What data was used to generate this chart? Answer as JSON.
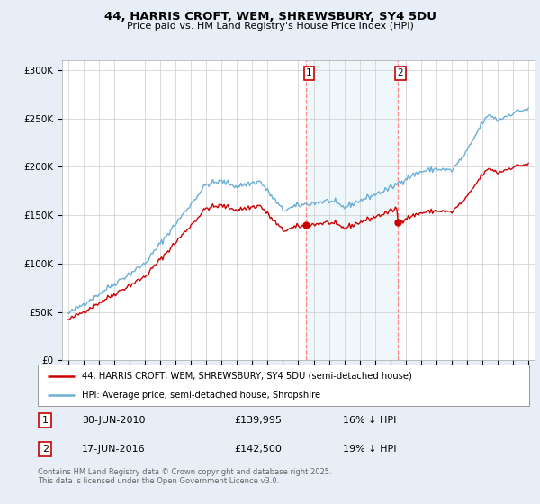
{
  "title": "44, HARRIS CROFT, WEM, SHREWSBURY, SY4 5DU",
  "subtitle": "Price paid vs. HM Land Registry's House Price Index (HPI)",
  "legend_line1": "44, HARRIS CROFT, WEM, SHREWSBURY, SY4 5DU (semi-detached house)",
  "legend_line2": "HPI: Average price, semi-detached house, Shropshire",
  "transaction1_date": "30-JUN-2010",
  "transaction1_price": "£139,995",
  "transaction1_hpi": "16% ↓ HPI",
  "transaction1_year": 2010.5,
  "transaction1_value": 139995,
  "transaction2_date": "17-JUN-2016",
  "transaction2_price": "£142,500",
  "transaction2_hpi": "19% ↓ HPI",
  "transaction2_year": 2016.46,
  "transaction2_value": 142500,
  "hpi_color": "#6baed6",
  "price_color": "#cc0000",
  "vline_color": "#ff8888",
  "background_color": "#e8eef8",
  "plot_bg": "#ffffff",
  "footer": "Contains HM Land Registry data © Crown copyright and database right 2025.\nThis data is licensed under the Open Government Licence v3.0.",
  "ylim": [
    0,
    310000
  ],
  "yticks": [
    0,
    50000,
    100000,
    150000,
    200000,
    250000,
    300000
  ],
  "ytick_labels": [
    "£0",
    "£50K",
    "£100K",
    "£150K",
    "£200K",
    "£250K",
    "£300K"
  ]
}
